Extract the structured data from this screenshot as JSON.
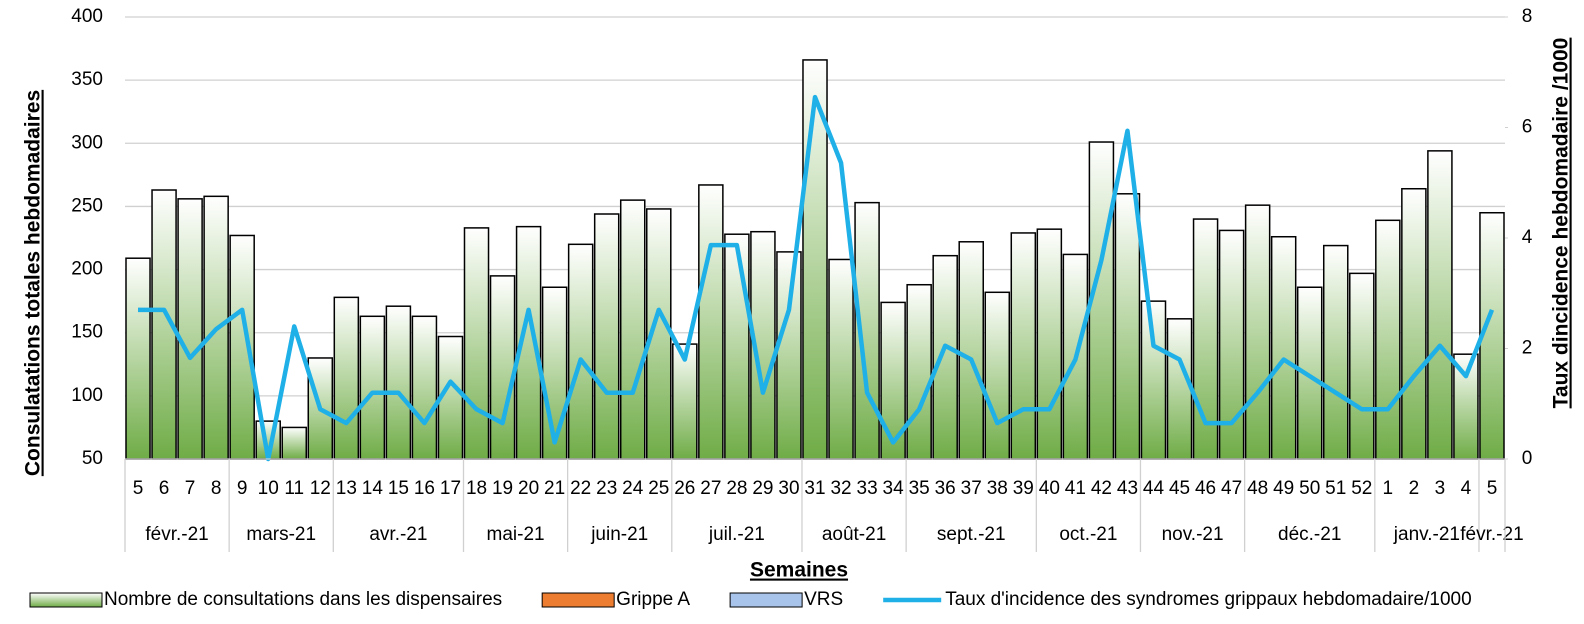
{
  "chart_data": {
    "type": "bar_line",
    "y_label": "Consulatations totales hebdomadaires",
    "y2_label": "Taux dincidence hebdomadaire /1000",
    "x_label": "Semaines",
    "groups": [
      {
        "label": "févr.-21",
        "categories": [
          "5",
          "6",
          "7",
          "8"
        ]
      },
      {
        "label": "mars-21",
        "categories": [
          "9",
          "10",
          "11",
          "12"
        ]
      },
      {
        "label": "avr.-21",
        "categories": [
          "13",
          "14",
          "15",
          "16",
          "17"
        ]
      },
      {
        "label": "mai-21",
        "categories": [
          "18",
          "19",
          "20",
          "21"
        ]
      },
      {
        "label": "juin-21",
        "categories": [
          "22",
          "23",
          "24",
          "25"
        ]
      },
      {
        "label": "juil.-21",
        "categories": [
          "26",
          "27",
          "28",
          "29",
          "30"
        ]
      },
      {
        "label": "août-21",
        "categories": [
          "31",
          "32",
          "33",
          "34"
        ]
      },
      {
        "label": "sept.-21",
        "categories": [
          "35",
          "36",
          "37",
          "38",
          "39"
        ]
      },
      {
        "label": "oct.-21",
        "categories": [
          "40",
          "41",
          "42",
          "43"
        ]
      },
      {
        "label": "nov.-21",
        "categories": [
          "44",
          "45",
          "46",
          "47"
        ]
      },
      {
        "label": "déc.-21",
        "categories": [
          "48",
          "49",
          "50",
          "51",
          "52"
        ]
      },
      {
        "label": "janv.-21",
        "categories": [
          "1",
          "2",
          "3",
          "4"
        ]
      },
      {
        "label": "févr.-21",
        "categories": [
          "5"
        ]
      }
    ],
    "series": [
      {
        "name": "Nombre de consultations dans les dispensaires",
        "color": "#70ad47",
        "kind": "bar",
        "values": [
          209,
          263,
          256,
          258,
          227,
          80,
          75,
          130,
          178,
          163,
          171,
          163,
          147,
          233,
          195,
          234,
          186,
          220,
          244,
          255,
          248,
          141,
          267,
          228,
          230,
          214,
          366,
          208,
          253,
          174,
          188,
          211,
          222,
          182,
          229,
          232,
          212,
          301,
          260,
          175,
          161,
          240,
          231,
          251,
          226,
          186,
          219,
          197,
          239,
          264,
          294,
          133,
          245
        ]
      },
      {
        "name": "Taux d'incidence des syndromes grippaux hebdomadaire/1000",
        "color": "#1fb0e8",
        "kind": "line",
        "axis": "y2",
        "values": [
          2.7,
          2.7,
          1.83,
          2.35,
          2.7,
          0,
          2.4,
          0.9,
          0.65,
          1.2,
          1.2,
          0.65,
          1.4,
          0.9,
          0.65,
          2.7,
          0.3,
          1.8,
          1.2,
          1.2,
          2.7,
          1.8,
          3.87,
          3.87,
          1.2,
          2.7,
          6.55,
          5.36,
          1.2,
          0.3,
          0.9,
          2.05,
          1.8,
          0.65,
          0.9,
          0.9,
          1.8,
          3.6,
          5.94,
          2.05,
          1.8,
          0.65,
          0.65,
          1.2,
          1.8,
          1.5,
          1.2,
          0.9,
          0.9,
          1.5,
          2.05,
          1.5,
          2.7
        ]
      }
    ],
    "legend_extra": [
      {
        "name": "Grippe A",
        "color": "#ed7d31"
      },
      {
        "name": "VRS",
        "color": "#a9c4eb"
      }
    ],
    "ylim": [
      50,
      400
    ],
    "yticks": [
      50,
      100,
      150,
      200,
      250,
      300,
      350,
      400
    ],
    "y2lim": [
      0,
      8
    ],
    "y2ticks": [
      0,
      2,
      4,
      6,
      8
    ],
    "grid": true,
    "legend": "bottom"
  }
}
